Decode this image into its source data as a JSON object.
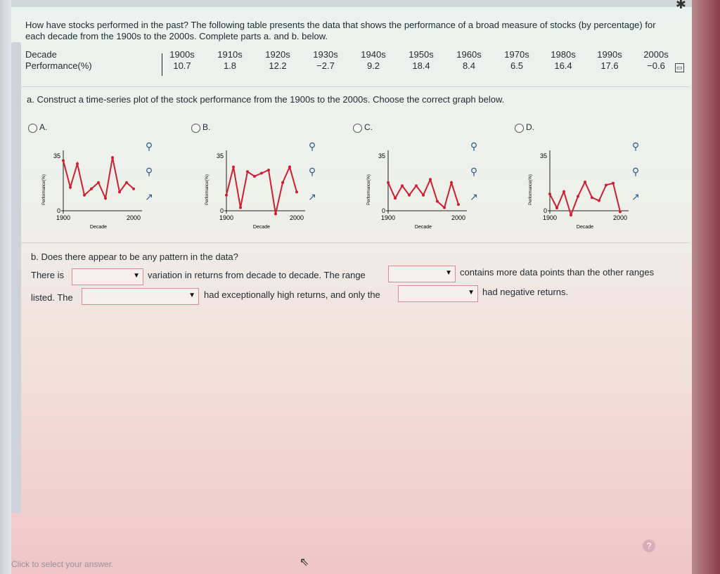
{
  "question": "How have stocks performed in the past? The following table presents the data that shows the performance of a broad measure of stocks (by percentage) for each decade from the 1900s to the 2000s. Complete parts a. and b. below.",
  "table": {
    "col_header": "Decade",
    "row_header": "Performance(%)",
    "decades": [
      "1900s",
      "1910s",
      "1920s",
      "1930s",
      "1940s",
      "1950s",
      "1960s",
      "1970s",
      "1980s",
      "1990s",
      "2000s"
    ],
    "values": [
      "10.7",
      "1.8",
      "12.2",
      "−2.7",
      "9.2",
      "18.4",
      "8.4",
      "6.5",
      "16.4",
      "17.6",
      "−0.6"
    ]
  },
  "part_a": "a. Construct a time-series plot of the stock performance from the 1900s to the 2000s. Choose the correct graph below.",
  "options": [
    {
      "label": "A.",
      "ytick_top": "35",
      "ytick_bottom": "0",
      "x_start": "1900",
      "x_end": "2000",
      "xlabel": "Decade",
      "ylabel": "Performance(%)",
      "values": [
        32,
        15,
        30,
        10,
        14,
        18,
        8,
        34,
        12,
        18,
        14
      ]
    },
    {
      "label": "B.",
      "ytick_top": "35",
      "ytick_bottom": "0",
      "x_start": "1900",
      "x_end": "2000",
      "xlabel": "Decade",
      "ylabel": "Performance(%)",
      "values": [
        10,
        28,
        2,
        25,
        22,
        24,
        26,
        -2,
        18,
        28,
        12
      ]
    },
    {
      "label": "C.",
      "ytick_top": "35",
      "ytick_bottom": "0",
      "x_start": "1900",
      "x_end": "2000",
      "xlabel": "Decade",
      "ylabel": "Performance(%)",
      "values": [
        18,
        8,
        16,
        10,
        16,
        10,
        20,
        6,
        2,
        18,
        4
      ]
    },
    {
      "label": "D.",
      "ytick_top": "35",
      "ytick_bottom": "0",
      "x_start": "1900",
      "x_end": "2000",
      "xlabel": "Decade",
      "ylabel": "Performance(%)",
      "values": [
        10.7,
        1.8,
        12.2,
        -2.7,
        9.2,
        18.4,
        8.4,
        6.5,
        16.4,
        17.6,
        -0.6
      ]
    }
  ],
  "part_b": "b. Does there appear to be any pattern in the data?",
  "sentence": {
    "s1": "There is",
    "s2": "variation in returns from decade to decade. The range",
    "s3": "contains more data points than the other ranges",
    "s4": "listed. The",
    "s5": "had exceptionally high returns, and only the",
    "s6": "had negative returns."
  },
  "footer": "Click to select your answer.",
  "help": "?",
  "colors": {
    "line": "#cc2030",
    "axis": "#222222",
    "icon": "#2a5b86",
    "dropdown_border": "#d98b95"
  }
}
